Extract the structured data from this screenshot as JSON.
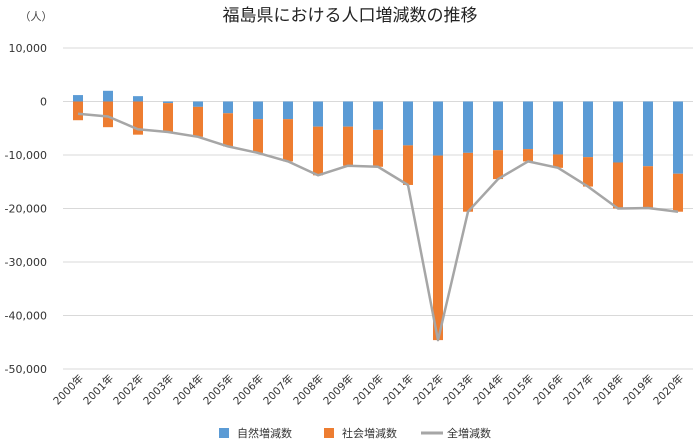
{
  "chart_data": {
    "type": "bar",
    "title": "福島県における人口増減数の推移",
    "unit_label": "（人）",
    "ylim": [
      -50000,
      10000
    ],
    "yticks": [
      10000,
      0,
      -10000,
      -20000,
      -30000,
      -40000,
      -50000
    ],
    "ytick_labels": [
      "10,000",
      "0",
      "-10,000",
      "-20,000",
      "-30,000",
      "-40,000",
      "-50,000"
    ],
    "categories": [
      "2000年",
      "2001年",
      "2002年",
      "2003年",
      "2004年",
      "2005年",
      "2006年",
      "2007年",
      "2008年",
      "2009年",
      "2010年",
      "2011年",
      "2012年",
      "2013年",
      "2014年",
      "2015年",
      "2016年",
      "2017年",
      "2018年",
      "2019年",
      "2020年"
    ],
    "series": [
      {
        "name": "自然増減数",
        "kind": "bar-stacked",
        "color": "#5b9bd5",
        "values": [
          1200,
          2000,
          1000,
          -300,
          -1000,
          -2200,
          -3300,
          -3300,
          -4700,
          -4700,
          -5300,
          -8200,
          -10100,
          -9600,
          -9100,
          -8900,
          -9900,
          -10400,
          -11400,
          -12100,
          -13500
        ]
      },
      {
        "name": "社会増減数",
        "kind": "bar-stacked",
        "color": "#ed7d31",
        "values": [
          -3500,
          -4800,
          -6200,
          -5400,
          -5600,
          -6200,
          -6300,
          -7900,
          -9100,
          -7300,
          -6900,
          -7400,
          -34500,
          -11000,
          -5400,
          -2300,
          -2500,
          -5500,
          -8600,
          -7800,
          -7100
        ]
      },
      {
        "name": "全増減数",
        "kind": "line",
        "color": "#a6a6a6",
        "values": [
          -2300,
          -2800,
          -5200,
          -5700,
          -6600,
          -8400,
          -9600,
          -11200,
          -13800,
          -12000,
          -12200,
          -15600,
          -44600,
          -20600,
          -14500,
          -11200,
          -12400,
          -15900,
          -20000,
          -19900,
          -20600
        ]
      }
    ],
    "grid": true,
    "legend_position": "bottom"
  }
}
